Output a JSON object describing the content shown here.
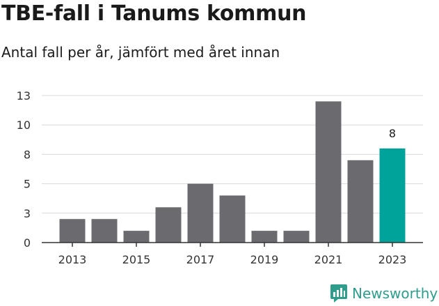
{
  "header": {
    "title": "TBE-fall i Tanums kommun",
    "subtitle": "Antal fall per år, jämfört med året innan"
  },
  "brand": {
    "name": "Newsworthy",
    "icon": "bar-chart-logo-icon",
    "color": "#2e9d8c"
  },
  "chart_data": {
    "type": "bar",
    "x": [
      2013,
      2014,
      2015,
      2016,
      2017,
      2018,
      2019,
      2020,
      2021,
      2022,
      2023
    ],
    "values": [
      2,
      2,
      1,
      3,
      5,
      4,
      1,
      1,
      12,
      7,
      8
    ],
    "xtick_labels": [
      "2013",
      "2015",
      "2017",
      "2019",
      "2021",
      "2023"
    ],
    "ytick_values": [
      0,
      2.5,
      5,
      7.5,
      10,
      12.5
    ],
    "ytick_labels": [
      "0",
      "3",
      "5",
      "8",
      "10",
      "13"
    ],
    "ylim": [
      0,
      12.5
    ],
    "data_labels": [
      {
        "x": 2023,
        "text": "8"
      }
    ],
    "highlight": {
      "x": 2023,
      "color": "#00a39a"
    },
    "bar_color": "#6b6a6f",
    "grid": true
  }
}
